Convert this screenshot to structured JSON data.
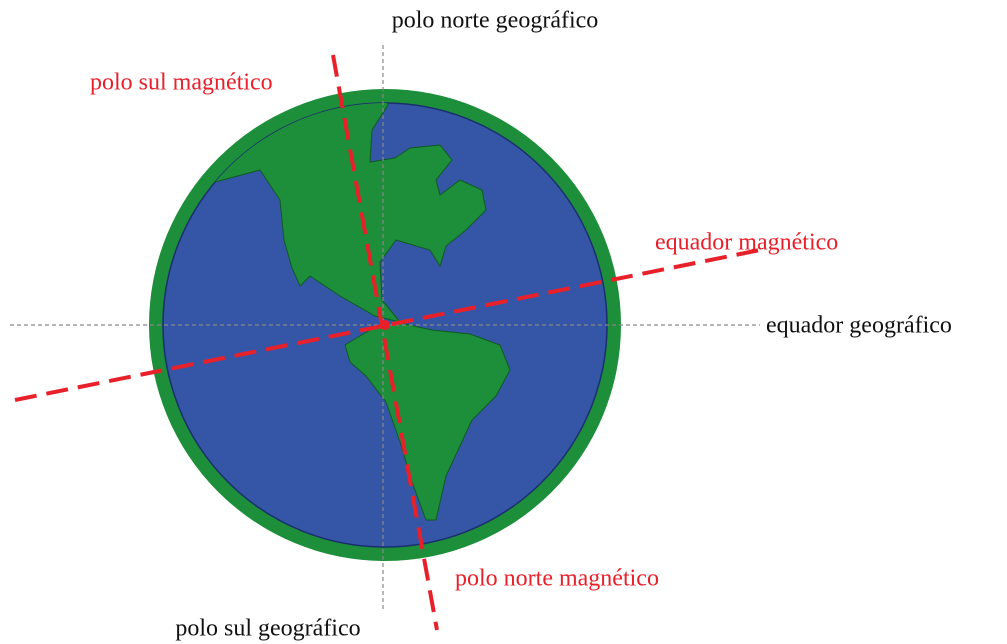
{
  "labels": {
    "geographic_north": "polo norte geográfico",
    "magnetic_south": "polo sul magnético",
    "magnetic_equator": "equador magnético",
    "geographic_equator": "equador geográfico",
    "magnetic_north": "polo norte magnético",
    "geographic_south": "polo sul geográfico"
  }
}
